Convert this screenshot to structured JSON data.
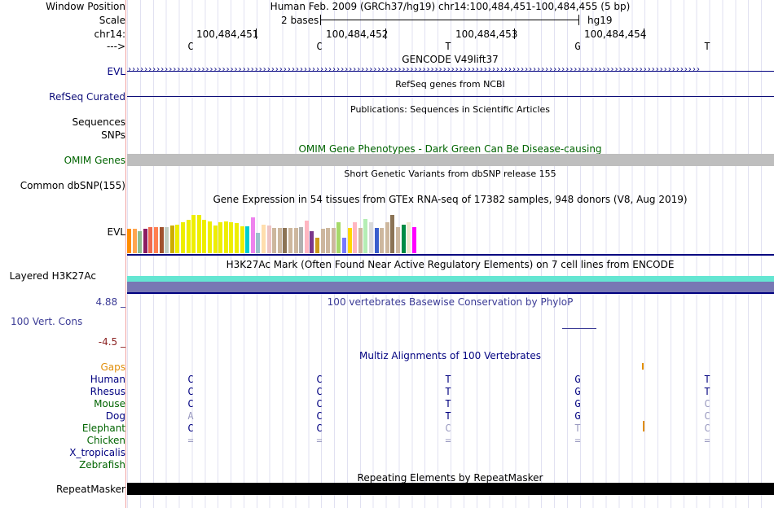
{
  "header": {
    "window_position_label": "Window Position",
    "scale_label": "Scale",
    "chrom_label": "chr14:",
    "strand_label": "--->",
    "assembly_text": "Human Feb. 2009 (GRCh37/hg19)   chr14:100,484,451-100,484,455 (5 bp)",
    "scale_text": "2 bases",
    "scale_db": "hg19",
    "positions": [
      "100,484,451",
      "100,484,452",
      "100,484,453",
      "100,484,454"
    ],
    "bases": [
      "C",
      "C",
      "T",
      "G",
      "T"
    ]
  },
  "tracks": {
    "gencode": {
      "title": "GENCODE V49lift37",
      "label": "EVL",
      "color": "#000080"
    },
    "refseq": {
      "title": "RefSeq genes from NCBI",
      "label": "RefSeq Curated",
      "color": "#0c0c78"
    },
    "publications": {
      "title": "Publications: Sequences in Scientific Articles",
      "labels": [
        "Sequences",
        "SNPs"
      ]
    },
    "omim": {
      "title": "OMIM Gene Phenotypes - Dark Green Can Be Disease-causing",
      "label": "OMIM Genes",
      "color": "#006400",
      "bar_color": "#bebebe"
    },
    "dbsnp": {
      "title": "Short Genetic Variants from dbSNP release 155",
      "label": "Common dbSNP(155)"
    },
    "gtex": {
      "title": "Gene Expression in 54 tissues from GTEx RNA-seq of 17382 samples, 948 donors (V8, Aug 2019)",
      "label": "EVL",
      "bars": [
        {
          "value": 0.5,
          "color": "#FF8C00"
        },
        {
          "value": 0.5,
          "color": "#FFA54F"
        },
        {
          "value": 0.45,
          "color": "#8FBC8F"
        },
        {
          "value": 0.5,
          "color": "#8B1C62"
        },
        {
          "value": 0.55,
          "color": "#EE6A50"
        },
        {
          "value": 0.55,
          "color": "#FF7F50"
        },
        {
          "value": 0.55,
          "color": "#A0522D"
        },
        {
          "value": 0.55,
          "color": "#C1CDC1"
        },
        {
          "value": 0.57,
          "color": "#CDAD00"
        },
        {
          "value": 0.6,
          "color": "#EEEE00"
        },
        {
          "value": 0.64,
          "color": "#EEEE00"
        },
        {
          "value": 0.7,
          "color": "#EEEE00"
        },
        {
          "value": 0.8,
          "color": "#EEEE00"
        },
        {
          "value": 0.8,
          "color": "#EEEE00"
        },
        {
          "value": 0.7,
          "color": "#EEEE00"
        },
        {
          "value": 0.66,
          "color": "#EEEE00"
        },
        {
          "value": 0.58,
          "color": "#EEEE00"
        },
        {
          "value": 0.64,
          "color": "#EEEE00"
        },
        {
          "value": 0.66,
          "color": "#EEEE00"
        },
        {
          "value": 0.64,
          "color": "#EEEE00"
        },
        {
          "value": 0.62,
          "color": "#EEEE00"
        },
        {
          "value": 0.56,
          "color": "#EEEE00"
        },
        {
          "value": 0.56,
          "color": "#00CED1"
        },
        {
          "value": 0.75,
          "color": "#EE82EE"
        },
        {
          "value": 0.42,
          "color": "#9AC0CD"
        },
        {
          "value": 0.6,
          "color": "#FFDEAD"
        },
        {
          "value": 0.58,
          "color": "#EEC4C4"
        },
        {
          "value": 0.52,
          "color": "#CDB79E"
        },
        {
          "value": 0.52,
          "color": "#CDB79E"
        },
        {
          "value": 0.52,
          "color": "#8B7355"
        },
        {
          "value": 0.52,
          "color": "#CDB79E"
        },
        {
          "value": 0.52,
          "color": "#CDB79E"
        },
        {
          "value": 0.55,
          "color": "#B0B0B0"
        },
        {
          "value": 0.68,
          "color": "#FFB6C1"
        },
        {
          "value": 0.46,
          "color": "#7A378B"
        },
        {
          "value": 0.32,
          "color": "#CD9B1D"
        },
        {
          "value": 0.5,
          "color": "#CDB79E"
        },
        {
          "value": 0.52,
          "color": "#CDB79E"
        },
        {
          "value": 0.52,
          "color": "#CDB79E"
        },
        {
          "value": 0.65,
          "color": "#A6D96A"
        },
        {
          "value": 0.32,
          "color": "#7777FF"
        },
        {
          "value": 0.52,
          "color": "#FFD700"
        },
        {
          "value": 0.64,
          "color": "#FFB6C1"
        },
        {
          "value": 0.52,
          "color": "#CDB79E"
        },
        {
          "value": 0.72,
          "color": "#B4EEB4"
        },
        {
          "value": 0.64,
          "color": "#D9D9D9"
        },
        {
          "value": 0.52,
          "color": "#3A5FCD"
        },
        {
          "value": 0.52,
          "color": "#CDB79E"
        },
        {
          "value": 0.65,
          "color": "#CDB79E"
        },
        {
          "value": 0.8,
          "color": "#8B7355"
        },
        {
          "value": 0.55,
          "color": "#CDB79E"
        },
        {
          "value": 0.6,
          "color": "#008B45"
        },
        {
          "value": 0.64,
          "color": "#EEE8CD"
        },
        {
          "value": 0.55,
          "color": "#FF00FF"
        }
      ]
    },
    "h3k27ac": {
      "title": "H3K27Ac Mark (Often Found Near Active Regulatory Elements) on 7 cell lines from ENCODE",
      "label": "Layered H3K27Ac",
      "colors": [
        "#64E6D2",
        "#7878B4"
      ]
    },
    "phylop": {
      "title": "100 vertebrates Basewise Conservation by PhyloP",
      "label": "100 Vert. Cons",
      "max_label": "4.88 _",
      "min_label": "-4.5 _",
      "color": "#3C3C96",
      "min_color": "#8B2222"
    },
    "multiz": {
      "title": "Multiz Alignments of 100 Vertebrates",
      "gaps_label": "Gaps",
      "gaps_color": "#E08E0B",
      "species": [
        {
          "name": "Human",
          "color": "#000080",
          "bases": [
            "C",
            "C",
            "T",
            "G",
            "T"
          ],
          "base_colors": [
            "#000080",
            "#000080",
            "#000080",
            "#000080",
            "#000080"
          ]
        },
        {
          "name": "Rhesus",
          "color": "#000080",
          "bases": [
            "C",
            "C",
            "T",
            "G",
            "T"
          ],
          "base_colors": [
            "#000080",
            "#000080",
            "#000080",
            "#000080",
            "#000080"
          ]
        },
        {
          "name": "Mouse",
          "color": "#006400",
          "bases": [
            "C",
            "C",
            "T",
            "G",
            "C"
          ],
          "base_colors": [
            "#000080",
            "#000080",
            "#000080",
            "#000080",
            "#9a9ac0"
          ]
        },
        {
          "name": "Dog",
          "color": "#000080",
          "bases": [
            "A",
            "C",
            "T",
            "G",
            "C"
          ],
          "base_colors": [
            "#9a9ac0",
            "#000080",
            "#000080",
            "#000080",
            "#9a9ac0"
          ]
        },
        {
          "name": "Elephant",
          "color": "#006400",
          "bases": [
            "C",
            "C",
            "C",
            "T",
            "C"
          ],
          "base_colors": [
            "#000080",
            "#000080",
            "#9a9ac0",
            "#9a9ac0",
            "#9a9ac0"
          ]
        },
        {
          "name": "Chicken",
          "color": "#006400",
          "bases": [
            "=",
            "=",
            "=",
            "=",
            "="
          ],
          "base_colors": [
            "#9a9ac0",
            "#9a9ac0",
            "#9a9ac0",
            "#9a9ac0",
            "#9a9ac0"
          ]
        },
        {
          "name": "X_tropicalis",
          "color": "#000080",
          "bases": [
            "",
            "",
            "",
            "",
            ""
          ],
          "base_colors": [
            "#000080",
            "#000080",
            "#000080",
            "#000080",
            "#000080"
          ]
        },
        {
          "name": "Zebrafish",
          "color": "#006400",
          "bases": [
            "",
            "",
            "",
            "",
            ""
          ],
          "base_colors": [
            "#000080",
            "#000080",
            "#000080",
            "#000080",
            "#000080"
          ]
        }
      ]
    },
    "repeatmasker": {
      "title": "Repeating Elements by RepeatMasker",
      "label": "RepeatMasker",
      "color": "#000000"
    }
  }
}
